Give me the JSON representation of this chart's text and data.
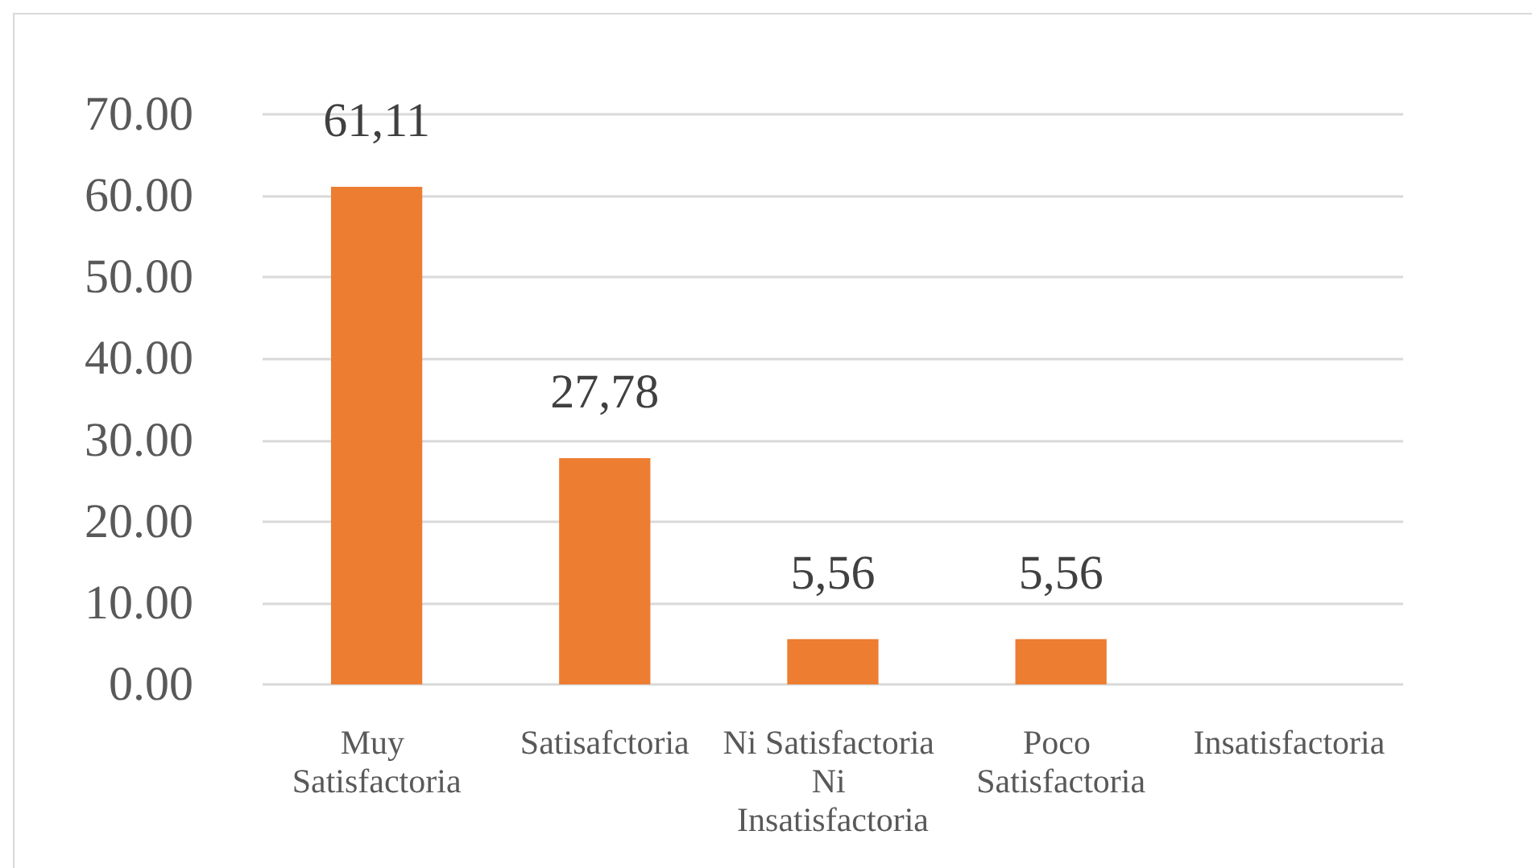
{
  "chart_data": {
    "type": "bar",
    "categories": [
      "Muy Satisfactoria",
      "Satisafctoria",
      "Ni Satisfactoria Ni Insatisfactoria",
      "Poco Satisfactoria",
      "Insatisfactoria"
    ],
    "values": [
      61.11,
      27.78,
      5.56,
      5.56,
      0
    ],
    "value_labels": [
      "61,11",
      "27,78",
      "5,56",
      "5,56",
      null
    ],
    "color": "#ed7d31",
    "ylim": [
      0,
      70
    ],
    "yticks": [
      {
        "value": 0,
        "label": "0.00"
      },
      {
        "value": 10,
        "label": "10.00"
      },
      {
        "value": 20,
        "label": "20.00"
      },
      {
        "value": 30,
        "label": "30.00"
      },
      {
        "value": 40,
        "label": "40.00"
      },
      {
        "value": 50,
        "label": "50.00"
      },
      {
        "value": 60,
        "label": "60.00"
      },
      {
        "value": 70,
        "label": "70.00"
      }
    ],
    "grid": "y"
  }
}
